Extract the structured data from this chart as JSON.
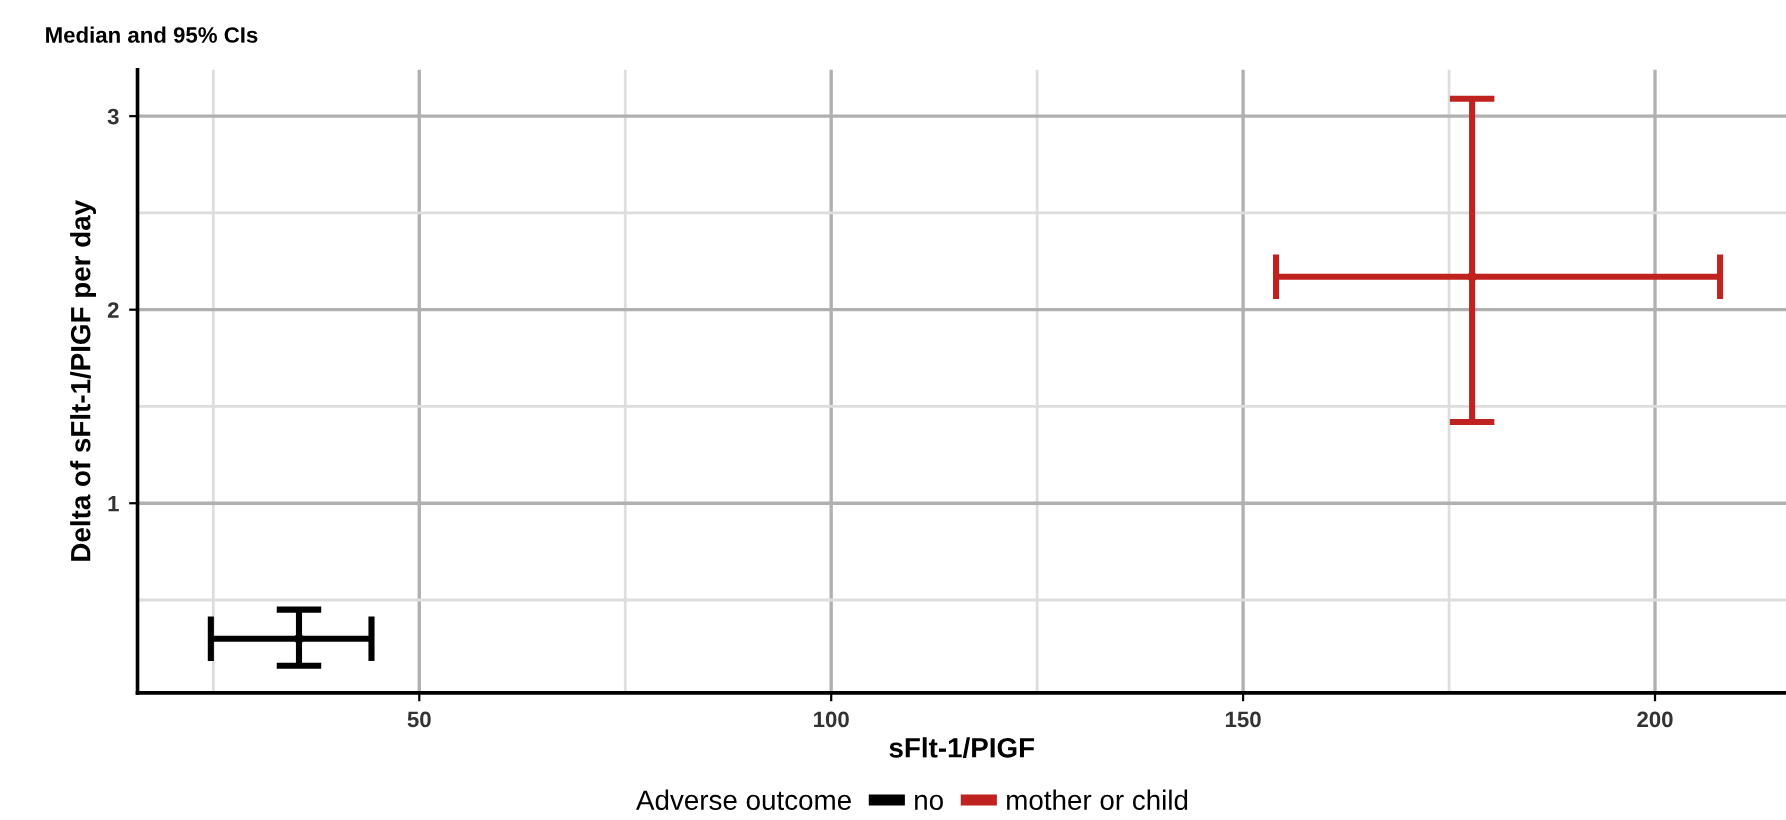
{
  "chart_data": {
    "type": "scatter",
    "title": "Median and 95% CIs",
    "xlabel": "sFlt-1/PIGF",
    "ylabel": "Delta of sFlt-1/PIGF per day",
    "legend_title": "Adverse outcome",
    "series": [
      {
        "name": "no",
        "color": "#000000",
        "x": [
          35.4
        ],
        "values": [
          0.3
        ],
        "errors": [
          [
            0.16,
            0.45
          ]
        ],
        "xerrors": [
          [
            24.7,
            44.2
          ]
        ]
      },
      {
        "name": "mother or child",
        "color": "#c0221f",
        "x": [
          177.8
        ],
        "values": [
          2.17
        ],
        "errors": [
          [
            1.42,
            3.09
          ]
        ],
        "xerrors": [
          [
            154.0,
            207.9
          ]
        ]
      }
    ],
    "marker": "none",
    "xlim": [
      15.8,
      215.9
    ],
    "ylim": [
      0.02,
      3.24
    ],
    "xticks": [
      {
        "value": 25,
        "label": null
      },
      50,
      {
        "value": 75,
        "label": null
      },
      100,
      {
        "value": 125,
        "label": null
      },
      150,
      {
        "value": 175,
        "label": null
      },
      200
    ],
    "yticks": [
      {
        "value": 0.5,
        "label": null
      },
      1,
      {
        "value": 1.5,
        "label": null
      },
      2,
      {
        "value": 2.5,
        "label": null
      },
      3
    ],
    "grid": true,
    "legend": "bottom"
  }
}
